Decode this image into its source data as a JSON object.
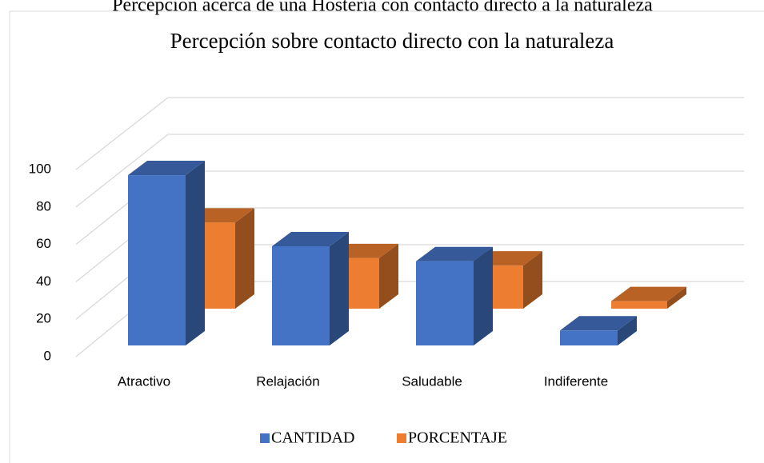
{
  "caption": "Percepción acerca de una Hostería con contacto directo a la naturaleza",
  "chart_data": {
    "type": "bar3d",
    "title": "Percepción sobre contacto directo con la naturaleza",
    "categories": [
      "Atractivo",
      "Relajación",
      "Saludable",
      "Indiferente"
    ],
    "series": [
      {
        "name": "CANTIDAD",
        "color": "#4472c4",
        "values": [
          91,
          53,
          45,
          8
        ]
      },
      {
        "name": "PORCENTAJE",
        "color": "#ed7d31",
        "values": [
          46,
          27,
          23,
          4
        ]
      }
    ],
    "ylim": [
      0,
      100
    ],
    "yticks": [
      0,
      20,
      40,
      60,
      80,
      100
    ],
    "grid": true,
    "legend": "bottom"
  }
}
